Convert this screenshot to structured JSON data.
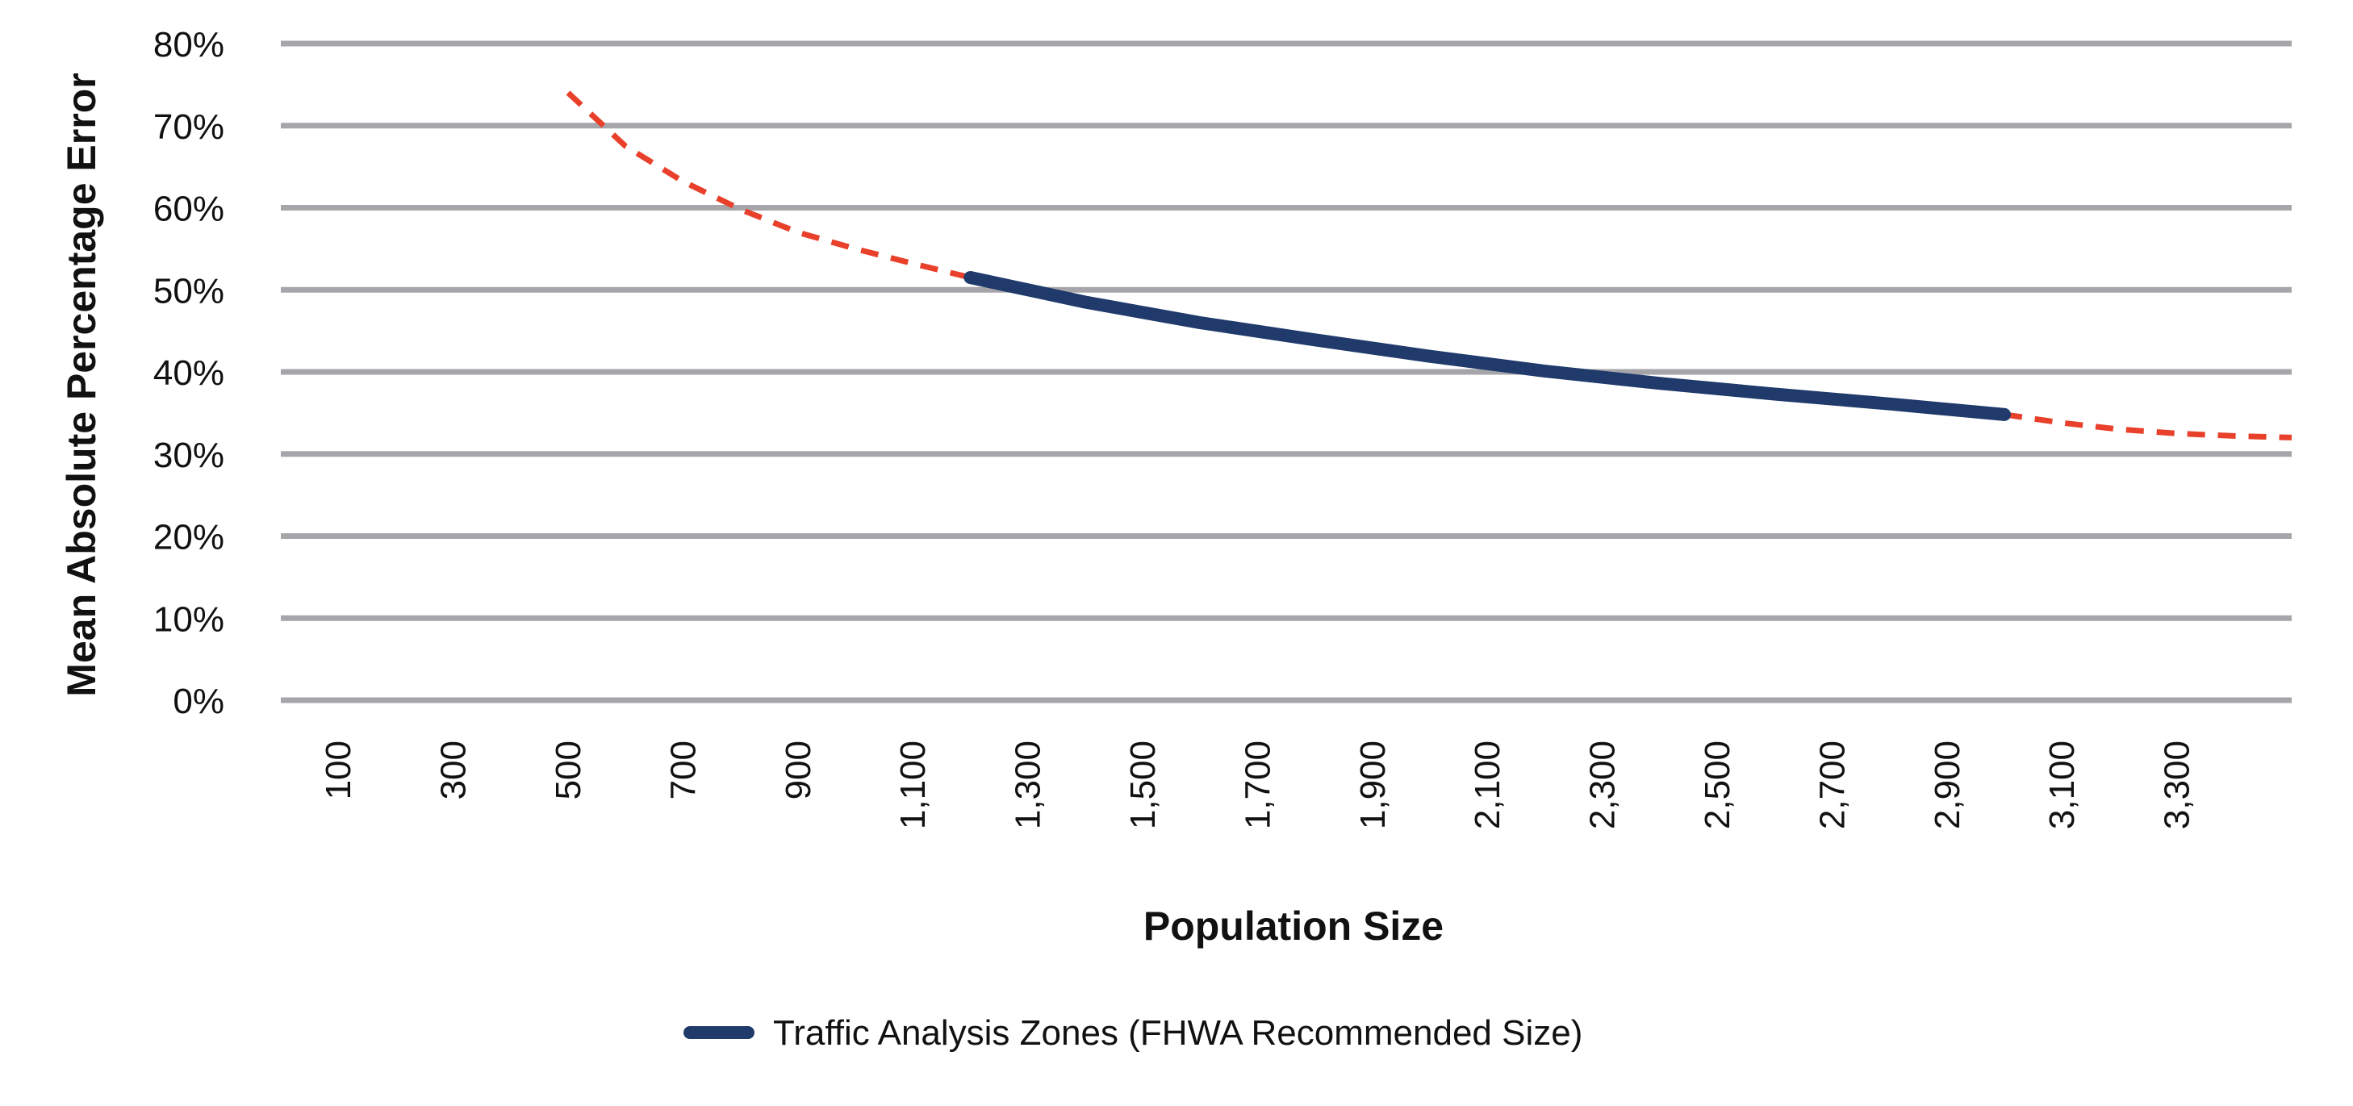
{
  "chart_data": {
    "type": "line",
    "title": "",
    "xlabel": "Population Size",
    "ylabel": "Mean Absolute Percentage Error",
    "x_ticks": [
      "100",
      "300",
      "500",
      "700",
      "900",
      "1,100",
      "1,300",
      "1,500",
      "1,700",
      "1,900",
      "2,100",
      "2,300",
      "2,500",
      "2,700",
      "2,900",
      "3,100",
      "3,300"
    ],
    "y_ticks": [
      "0%",
      "10%",
      "20%",
      "30%",
      "40%",
      "50%",
      "60%",
      "70%",
      "80%"
    ],
    "xlim": [
      0,
      3500
    ],
    "ylim": [
      0,
      80
    ],
    "grid": true,
    "legend_position": "bottom-center",
    "colors": {
      "fhwa": "#1f3a6b",
      "extrapolated": "#e8402a",
      "grid": "#a6a6aa"
    },
    "series": [
      {
        "name": "Traffic Analysis Zones (FHWA Recommended Size)",
        "style": "solid",
        "x": [
          1200,
          1400,
          1600,
          1800,
          2000,
          2200,
          2400,
          2600,
          2800,
          3000
        ],
        "y": [
          51.5,
          48.5,
          46.0,
          43.9,
          41.9,
          40.1,
          38.6,
          37.3,
          36.1,
          34.8
        ]
      },
      {
        "style": "dashed",
        "x": [
          500,
          600,
          700,
          800,
          900,
          1000,
          1100,
          1200
        ],
        "y": [
          74.0,
          67.5,
          63.2,
          59.8,
          57.0,
          55.0,
          53.2,
          51.5
        ]
      },
      {
        "style": "dashed",
        "x": [
          3000,
          3100,
          3200,
          3300,
          3400,
          3500
        ],
        "y": [
          34.8,
          33.8,
          33.0,
          32.5,
          32.2,
          32.0
        ]
      }
    ]
  }
}
